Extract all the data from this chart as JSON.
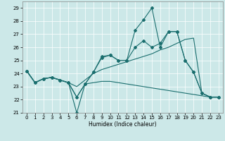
{
  "xlabel": "Humidex (Indice chaleur)",
  "bg_color": "#cce8e8",
  "line_color": "#1a6e6e",
  "xlim": [
    -0.5,
    23.5
  ],
  "ylim": [
    21,
    29.5
  ],
  "yticks": [
    21,
    22,
    23,
    24,
    25,
    26,
    27,
    28,
    29
  ],
  "xticks": [
    0,
    1,
    2,
    3,
    4,
    5,
    6,
    7,
    8,
    9,
    10,
    11,
    12,
    13,
    14,
    15,
    16,
    17,
    18,
    19,
    20,
    21,
    22,
    23
  ],
  "series": [
    [
      24.2,
      23.3,
      23.6,
      23.7,
      23.5,
      23.3,
      21.0,
      23.2,
      24.1,
      25.2,
      25.4,
      25.0,
      25.0,
      27.3,
      28.1,
      29.0,
      26.0,
      27.2,
      27.2,
      25.0,
      24.1,
      22.5,
      22.2,
      22.2
    ],
    [
      24.2,
      23.3,
      23.6,
      23.7,
      23.5,
      23.3,
      22.2,
      23.2,
      24.1,
      25.3,
      25.4,
      25.0,
      25.0,
      26.0,
      26.5,
      26.0,
      26.3,
      27.2,
      27.2,
      25.0,
      24.1,
      22.5,
      22.2,
      22.2
    ],
    [
      24.2,
      23.3,
      23.6,
      23.7,
      23.5,
      23.3,
      23.0,
      23.5,
      24.0,
      24.3,
      24.5,
      24.7,
      24.9,
      25.1,
      25.3,
      25.5,
      25.8,
      26.0,
      26.3,
      26.6,
      26.7,
      22.5,
      22.2,
      22.2
    ],
    [
      24.2,
      23.3,
      23.6,
      23.7,
      23.5,
      23.3,
      22.2,
      23.2,
      23.3,
      23.4,
      23.4,
      23.3,
      23.2,
      23.1,
      23.0,
      22.9,
      22.8,
      22.7,
      22.6,
      22.5,
      22.4,
      22.3,
      22.2,
      22.2
    ]
  ],
  "marker_series": [
    0,
    1
  ],
  "marker": "D",
  "markersize": 2.0
}
